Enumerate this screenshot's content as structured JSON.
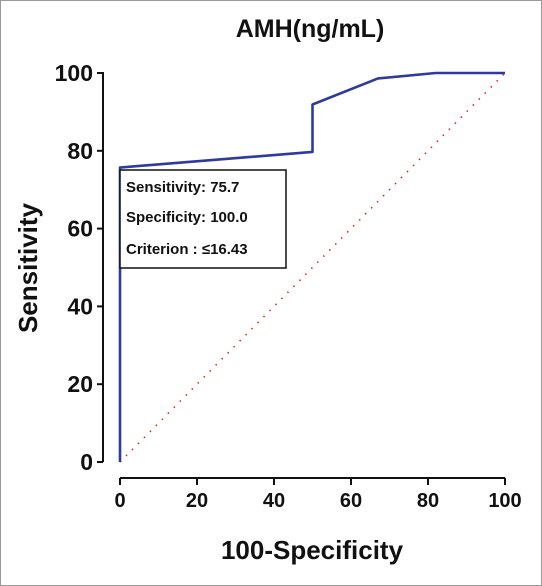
{
  "chart_data": {
    "type": "line",
    "title": "AMH(ng/mL)",
    "xlabel": "100-Specificity",
    "ylabel": "Sensitivity",
    "xlim": [
      0,
      100
    ],
    "ylim": [
      0,
      100
    ],
    "x_ticks": [
      0,
      20,
      40,
      60,
      80,
      100
    ],
    "y_ticks": [
      0,
      20,
      40,
      60,
      80,
      100
    ],
    "grid": false,
    "series": [
      {
        "color": "#2e3a9e",
        "x": [
          0,
          0,
          50,
          50,
          67,
          82,
          100
        ],
        "y": [
          0,
          75.7,
          79.7,
          91.9,
          98.6,
          100,
          100
        ]
      }
    ],
    "reference_line": {
      "style": "dotted",
      "color": "#d62b2b",
      "x": [
        0,
        100
      ],
      "y": [
        0,
        100
      ]
    },
    "annotation": {
      "lines": [
        "Sensitivity: 75.7",
        "Specificity: 100.0",
        "Criterion : ≤16.43"
      ]
    }
  }
}
